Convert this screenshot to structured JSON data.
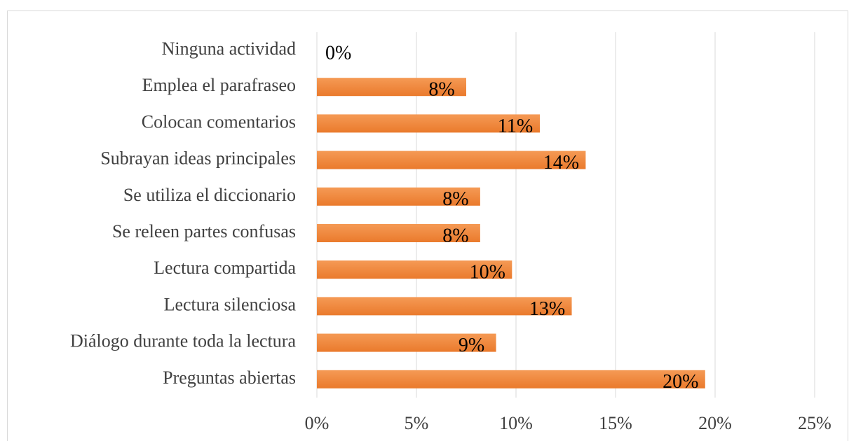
{
  "chart_data": {
    "type": "bar",
    "orientation": "horizontal",
    "categories": [
      "Ninguna actividad",
      "Emplea el parafraseo",
      "Colocan comentarios",
      "Subrayan ideas principales",
      "Se utiliza el diccionario",
      "Se releen partes confusas",
      "Lectura compartida",
      "Lectura silenciosa",
      "Diálogo durante toda la lectura",
      "Preguntas abiertas"
    ],
    "values": [
      0,
      7.5,
      11.2,
      13.5,
      8.2,
      8.2,
      9.8,
      12.8,
      9.0,
      19.5
    ],
    "value_labels": [
      "0%",
      "8%",
      "11%",
      "14%",
      "8%",
      "8%",
      "10%",
      "13%",
      "9%",
      "20%"
    ],
    "color": "#f0843c",
    "xlim": [
      0,
      25
    ],
    "xticks": [
      {
        "value": 0,
        "label": "0%"
      },
      {
        "value": 5,
        "label": "5%"
      },
      {
        "value": 10,
        "label": "10%"
      },
      {
        "value": 15,
        "label": "15%"
      },
      {
        "value": 20,
        "label": "20%"
      },
      {
        "value": 25,
        "label": "25%"
      }
    ],
    "grid": true
  }
}
